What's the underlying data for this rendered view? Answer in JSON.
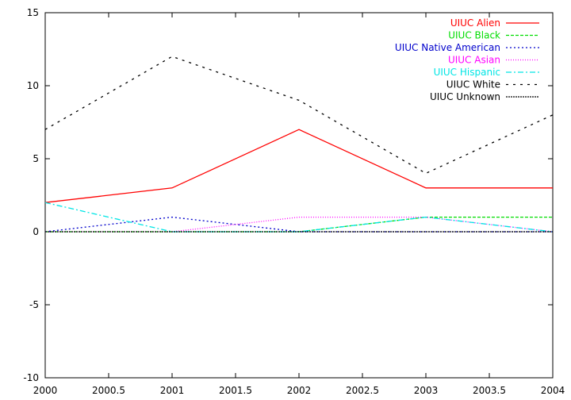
{
  "chart_data": {
    "type": "line",
    "title": "",
    "xlabel": "",
    "ylabel": "",
    "xlim": [
      2000,
      2004
    ],
    "ylim": [
      -10,
      15
    ],
    "grid": false,
    "legend_position": "top-right",
    "x": [
      2000,
      2001,
      2002,
      2003,
      2004
    ],
    "x_ticks": [
      2000,
      2000.5,
      2001,
      2001.5,
      2002,
      2002.5,
      2003,
      2003.5,
      2004
    ],
    "x_tick_labels": [
      "2000",
      "2000.5",
      "2001",
      "2001.5",
      "2002",
      "2002.5",
      "2003",
      "2003.5",
      "2004"
    ],
    "y_ticks": [
      -10,
      -5,
      0,
      5,
      10,
      15
    ],
    "y_tick_labels": [
      "-10",
      "-5",
      "0",
      "5",
      "10",
      "15"
    ],
    "series": [
      {
        "name": "UIUC Alien",
        "color": "#ff0000",
        "dash": "solid",
        "values": [
          2,
          3,
          7,
          3,
          3
        ]
      },
      {
        "name": "UIUC Black",
        "color": "#00dd00",
        "dash": "dashed",
        "values": [
          0,
          0,
          0,
          1,
          1
        ]
      },
      {
        "name": "UIUC Native American",
        "color": "#0000cc",
        "dash": "dotted",
        "values": [
          0,
          1,
          0,
          0,
          0
        ]
      },
      {
        "name": "UIUC Asian",
        "color": "#ff00ff",
        "dash": "fine-dotted",
        "values": [
          0,
          0,
          1,
          1,
          0
        ]
      },
      {
        "name": "UIUC Hispanic",
        "color": "#00e5e5",
        "dash": "dash-dot",
        "values": [
          2,
          0,
          0,
          1,
          0
        ]
      },
      {
        "name": "UIUC White",
        "color": "#000000",
        "dash": "loose-dashed",
        "values": [
          7,
          12,
          9,
          4,
          8
        ]
      },
      {
        "name": "UIUC Unknown",
        "color": "#000000",
        "dash": "dense-dotted",
        "values": [
          0,
          0,
          0,
          0,
          0
        ]
      }
    ]
  }
}
